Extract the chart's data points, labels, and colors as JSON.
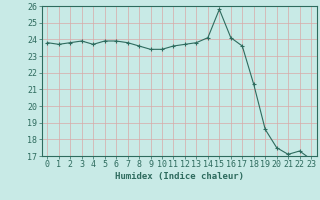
{
  "title": "",
  "xlabel": "Humidex (Indice chaleur)",
  "ylabel": "",
  "x": [
    0,
    1,
    2,
    3,
    4,
    5,
    6,
    7,
    8,
    9,
    10,
    11,
    12,
    13,
    14,
    15,
    16,
    17,
    18,
    19,
    20,
    21,
    22,
    23
  ],
  "y": [
    23.8,
    23.7,
    23.8,
    23.9,
    23.7,
    23.9,
    23.9,
    23.8,
    23.6,
    23.4,
    23.4,
    23.6,
    23.7,
    23.8,
    24.1,
    25.8,
    24.1,
    23.6,
    21.3,
    18.6,
    17.5,
    17.1,
    17.3,
    16.8
  ],
  "line_color": "#2e6b5e",
  "marker": "+",
  "marker_size": 3,
  "bg_color": "#c8eae6",
  "grid_color": "#d8a8a8",
  "ylim": [
    17,
    26
  ],
  "yticks": [
    17,
    18,
    19,
    20,
    21,
    22,
    23,
    24,
    25,
    26
  ],
  "xlim": [
    -0.5,
    23.5
  ],
  "title_fontsize": 7,
  "axis_fontsize": 6.5,
  "tick_fontsize": 6
}
